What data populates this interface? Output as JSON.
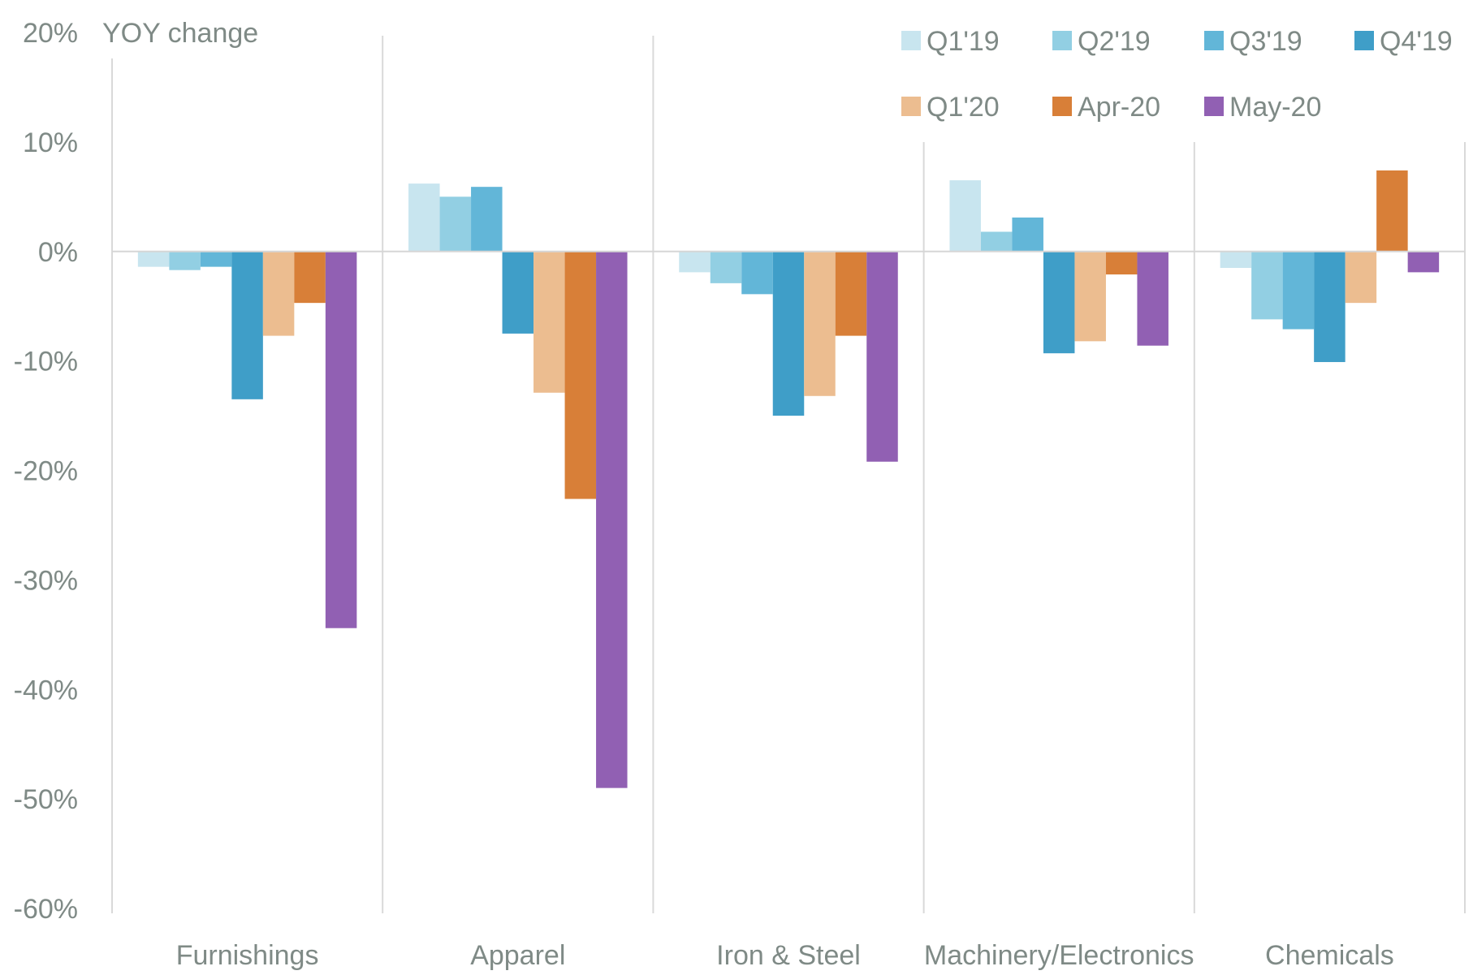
{
  "chart_data": {
    "type": "bar",
    "ylabel": "YOY change",
    "ylim": [
      -60,
      20
    ],
    "ytick_step": 10,
    "ytick_suffix": "%",
    "grid": false,
    "legend_position": "top-right",
    "categories": [
      "Furnishings",
      "Apparel",
      "Iron & Steel",
      "Machinery/Electronics",
      "Chemicals"
    ],
    "series": [
      {
        "name": "Q1'19",
        "color": "#c8e5ef",
        "values": [
          -1.4,
          6.2,
          -1.9,
          6.5,
          -1.5
        ]
      },
      {
        "name": "Q2'19",
        "color": "#92cfe3",
        "values": [
          -1.7,
          5.0,
          -2.9,
          1.8,
          -6.2
        ]
      },
      {
        "name": "Q3'19",
        "color": "#62b6d8",
        "values": [
          -1.4,
          5.9,
          -3.9,
          3.1,
          -7.1
        ]
      },
      {
        "name": "Q4'19",
        "color": "#3f9ec8",
        "values": [
          -13.5,
          -7.5,
          -15.0,
          -9.3,
          -10.1
        ]
      },
      {
        "name": "Q1'20",
        "color": "#ecbd90",
        "values": [
          -7.7,
          -12.9,
          -13.2,
          -8.2,
          -4.7
        ]
      },
      {
        "name": "Apr-20",
        "color": "#d87f38",
        "values": [
          -4.7,
          -22.6,
          -7.7,
          -2.1,
          7.4
        ]
      },
      {
        "name": "May-20",
        "color": "#9160b3",
        "values": [
          -34.4,
          -49.0,
          -19.2,
          -8.6,
          -1.9
        ]
      }
    ]
  }
}
